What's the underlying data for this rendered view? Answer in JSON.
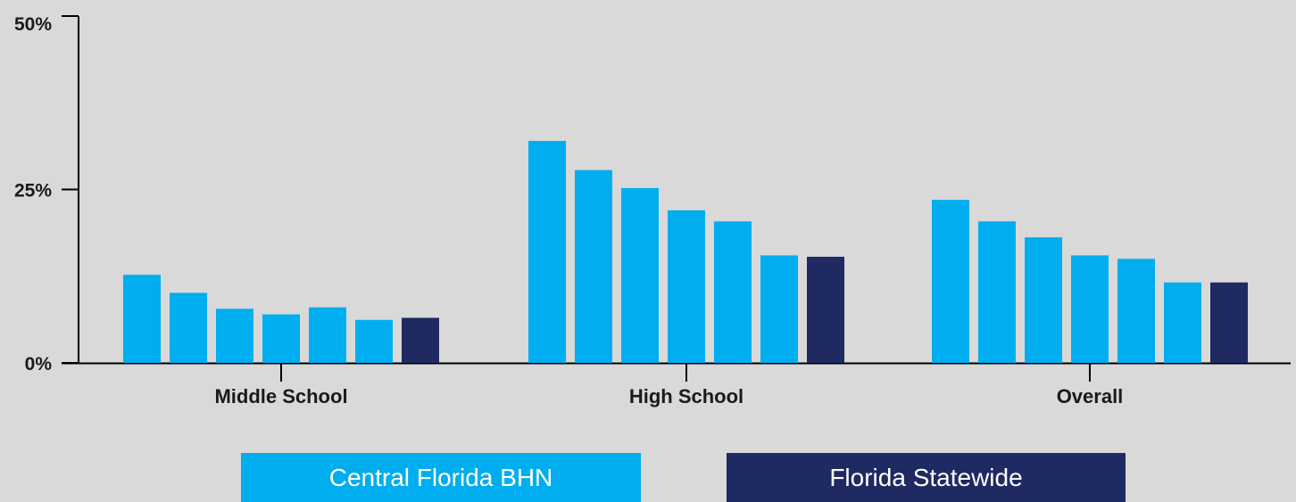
{
  "chart_data": {
    "type": "bar",
    "categories": [
      "Middle School",
      "High School",
      "Overall"
    ],
    "yticks": [
      "0%",
      "25%",
      "50%"
    ],
    "ylim": [
      0,
      50
    ],
    "series_groups": [
      {
        "name": "Central Florida BHN",
        "color": "#00aeef",
        "bars_per_category": 6
      },
      {
        "name": "Florida Statewide",
        "color": "#1f2a63",
        "bars_per_category": 1
      }
    ],
    "values": [
      [
        12.7,
        10.1,
        7.8,
        7.0,
        8.0,
        6.2,
        6.5
      ],
      [
        32.0,
        27.8,
        25.2,
        22.0,
        20.4,
        15.5,
        15.3
      ],
      [
        23.5,
        20.4,
        18.1,
        15.5,
        15.0,
        11.6,
        11.6
      ]
    ],
    "grid": false
  },
  "legend": {
    "central_label": "Central Florida BHN",
    "statewide_label": "Florida Statewide"
  }
}
